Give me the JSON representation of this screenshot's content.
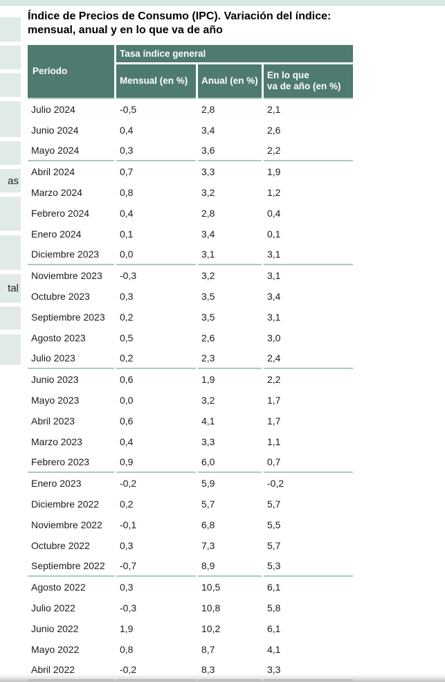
{
  "page": {
    "title_lines": [
      "Índice de Precios de Consumo (IPC). Variación del índice:",
      "mensual, anual y en lo que va de año"
    ]
  },
  "sidebar": {
    "fragment_as": "as",
    "fragment_tal": "tal"
  },
  "colors": {
    "header_green": "#4e7a70",
    "separator_teal": "#abc7c1",
    "topbar_teal": "#d9e8e5",
    "sidebar_stub": "#e0eae7",
    "muted_text": "#55585a"
  },
  "table": {
    "corner_header": "Período",
    "group_header": "Tasa índice general",
    "col_headers": [
      "Mensual (en %)",
      "Anual (en %)",
      "En lo que\nva de año (en %)"
    ],
    "rows": [
      {
        "period": "Julio 2024",
        "mensual": "-0,5",
        "anual": "2,8",
        "ytd": "2,1",
        "muted": false,
        "group_end": false
      },
      {
        "period": "Junio 2024",
        "mensual": "0,4",
        "anual": "3,4",
        "ytd": "2,6",
        "muted": false,
        "group_end": false
      },
      {
        "period": "Mayo 2024",
        "mensual": "0,3",
        "anual": "3,6",
        "ytd": "2,2",
        "muted": true,
        "group_end": true
      },
      {
        "period": "Abril 2024",
        "mensual": "0,7",
        "anual": "3,3",
        "ytd": "1,9",
        "muted": false,
        "group_end": false
      },
      {
        "period": "Marzo 2024",
        "mensual": "0,8",
        "anual": "3,2",
        "ytd": "1,2",
        "muted": false,
        "group_end": false
      },
      {
        "period": "Febrero 2024",
        "mensual": "0,4",
        "anual": "2,8",
        "ytd": "0,4",
        "muted": false,
        "group_end": false
      },
      {
        "period": "Enero 2024",
        "mensual": "0,1",
        "anual": "3,4",
        "ytd": "0,1",
        "muted": false,
        "group_end": false
      },
      {
        "period": "Diciembre 2023",
        "mensual": "0,0",
        "anual": "3,1",
        "ytd": "3,1",
        "muted": true,
        "group_end": true
      },
      {
        "period": "Noviembre 2023",
        "mensual": "-0,3",
        "anual": "3,2",
        "ytd": "3,1",
        "muted": false,
        "group_end": false
      },
      {
        "period": "Octubre 2023",
        "mensual": "0,3",
        "anual": "3,5",
        "ytd": "3,4",
        "muted": false,
        "group_end": false
      },
      {
        "period": "Septiembre 2023",
        "mensual": "0,2",
        "anual": "3,5",
        "ytd": "3,1",
        "muted": false,
        "group_end": false
      },
      {
        "period": "Agosto 2023",
        "mensual": "0,5",
        "anual": "2,6",
        "ytd": "3,0",
        "muted": false,
        "group_end": false
      },
      {
        "period": "Julio 2023",
        "mensual": "0,2",
        "anual": "2,3",
        "ytd": "2,4",
        "muted": true,
        "group_end": true
      },
      {
        "period": "Junio 2023",
        "mensual": "0,6",
        "anual": "1,9",
        "ytd": "2,2",
        "muted": false,
        "group_end": false
      },
      {
        "period": "Mayo 2023",
        "mensual": "0,0",
        "anual": "3,2",
        "ytd": "1,7",
        "muted": false,
        "group_end": false
      },
      {
        "period": "Abril 2023",
        "mensual": "0,6",
        "anual": "4,1",
        "ytd": "1,7",
        "muted": false,
        "group_end": false
      },
      {
        "period": "Marzo 2023",
        "mensual": "0,4",
        "anual": "3,3",
        "ytd": "1,1",
        "muted": false,
        "group_end": false
      },
      {
        "period": "Febrero 2023",
        "mensual": "0,9",
        "anual": "6,0",
        "ytd": "0,7",
        "muted": true,
        "group_end": true
      },
      {
        "period": "Enero 2023",
        "mensual": "-0,2",
        "anual": "5,9",
        "ytd": "-0,2",
        "muted": false,
        "group_end": false
      },
      {
        "period": "Diciembre 2022",
        "mensual": "0,2",
        "anual": "5,7",
        "ytd": "5,7",
        "muted": false,
        "group_end": false
      },
      {
        "period": "Noviembre 2022",
        "mensual": "-0,1",
        "anual": "6,8",
        "ytd": "5,5",
        "muted": false,
        "group_end": false
      },
      {
        "period": "Octubre 2022",
        "mensual": "0,3",
        "anual": "7,3",
        "ytd": "5,7",
        "muted": false,
        "group_end": false
      },
      {
        "period": "Septiembre 2022",
        "mensual": "-0,7",
        "anual": "8,9",
        "ytd": "5,3",
        "muted": true,
        "group_end": true
      },
      {
        "period": "Agosto 2022",
        "mensual": "0,3",
        "anual": "10,5",
        "ytd": "6,1",
        "muted": false,
        "group_end": false
      },
      {
        "period": "Julio 2022",
        "mensual": "-0,3",
        "anual": "10,8",
        "ytd": "5,8",
        "muted": false,
        "group_end": false
      },
      {
        "period": "Junio 2022",
        "mensual": "1,9",
        "anual": "10,2",
        "ytd": "6,1",
        "muted": false,
        "group_end": false
      },
      {
        "period": "Mayo 2022",
        "mensual": "0,8",
        "anual": "8,7",
        "ytd": "4,1",
        "muted": false,
        "group_end": false
      },
      {
        "period": "Abril 2022",
        "mensual": "-0,2",
        "anual": "8,3",
        "ytd": "3,3",
        "muted": true,
        "group_end": true
      }
    ]
  }
}
